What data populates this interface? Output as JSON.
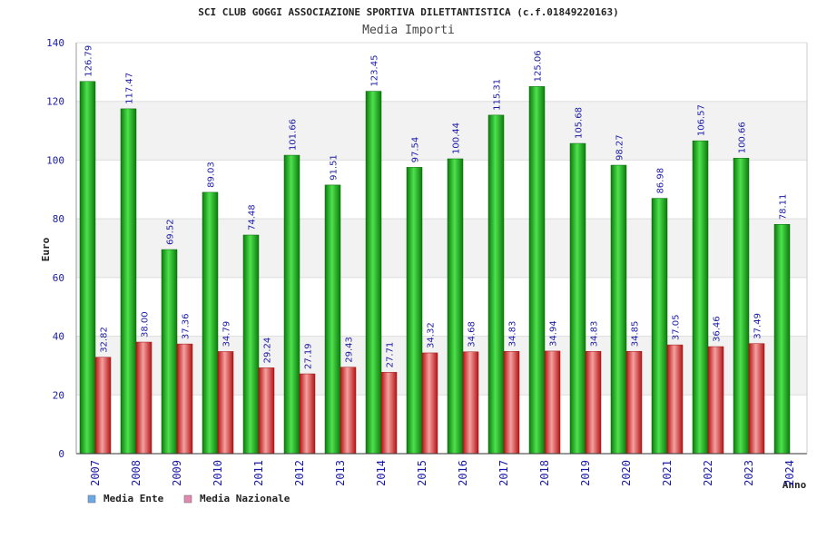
{
  "chart_data": {
    "type": "bar",
    "title": "SCI CLUB GOGGI ASSOCIAZIONE SPORTIVA DILETTANTISTICA (c.f.01849220163)",
    "subtitle": "Media Importi",
    "ylabel": "Euro",
    "xlabel": "Anno",
    "ylim": [
      0,
      140
    ],
    "yticks": [
      0,
      20,
      40,
      60,
      80,
      100,
      120,
      140
    ],
    "grid": true,
    "legend_position": "bottom-left",
    "categories": [
      "2007",
      "2008",
      "2009",
      "2010",
      "2011",
      "2012",
      "2013",
      "2014",
      "2015",
      "2016",
      "2017",
      "2018",
      "2019",
      "2020",
      "2021",
      "2022",
      "2023",
      "2024"
    ],
    "series": [
      {
        "name": "Media Ente",
        "color": "#22b422",
        "legend_color": "#6aa8e8",
        "values": [
          126.79,
          117.47,
          69.52,
          89.03,
          74.48,
          101.66,
          91.51,
          123.45,
          97.54,
          100.44,
          115.31,
          125.06,
          105.68,
          98.27,
          86.98,
          106.57,
          100.66,
          78.11
        ],
        "labels": [
          "126.79",
          "117.47",
          "69.52",
          "89.03",
          "74.48",
          "101.66",
          "91.51",
          "123.45",
          "97.54",
          "100.44",
          "115.31",
          "125.06",
          "105.68",
          "98.27",
          "86.98",
          "106.57",
          "100.66",
          "78.11"
        ]
      },
      {
        "name": "Media Nazionale",
        "color": "#e83a3a",
        "legend_color": "#e08ab0",
        "values": [
          32.82,
          38.0,
          37.36,
          34.79,
          29.24,
          27.19,
          29.43,
          27.71,
          34.32,
          34.68,
          34.83,
          34.94,
          34.83,
          34.85,
          37.05,
          36.46,
          37.49,
          null
        ],
        "labels": [
          "32.82",
          "38.00",
          "37.36",
          "34.79",
          "29.24",
          "27.19",
          "29.43",
          "27.71",
          "34.32",
          "34.68",
          "34.83",
          "34.94",
          "34.83",
          "34.85",
          "37.05",
          "36.46",
          "37.49",
          null
        ]
      }
    ]
  }
}
